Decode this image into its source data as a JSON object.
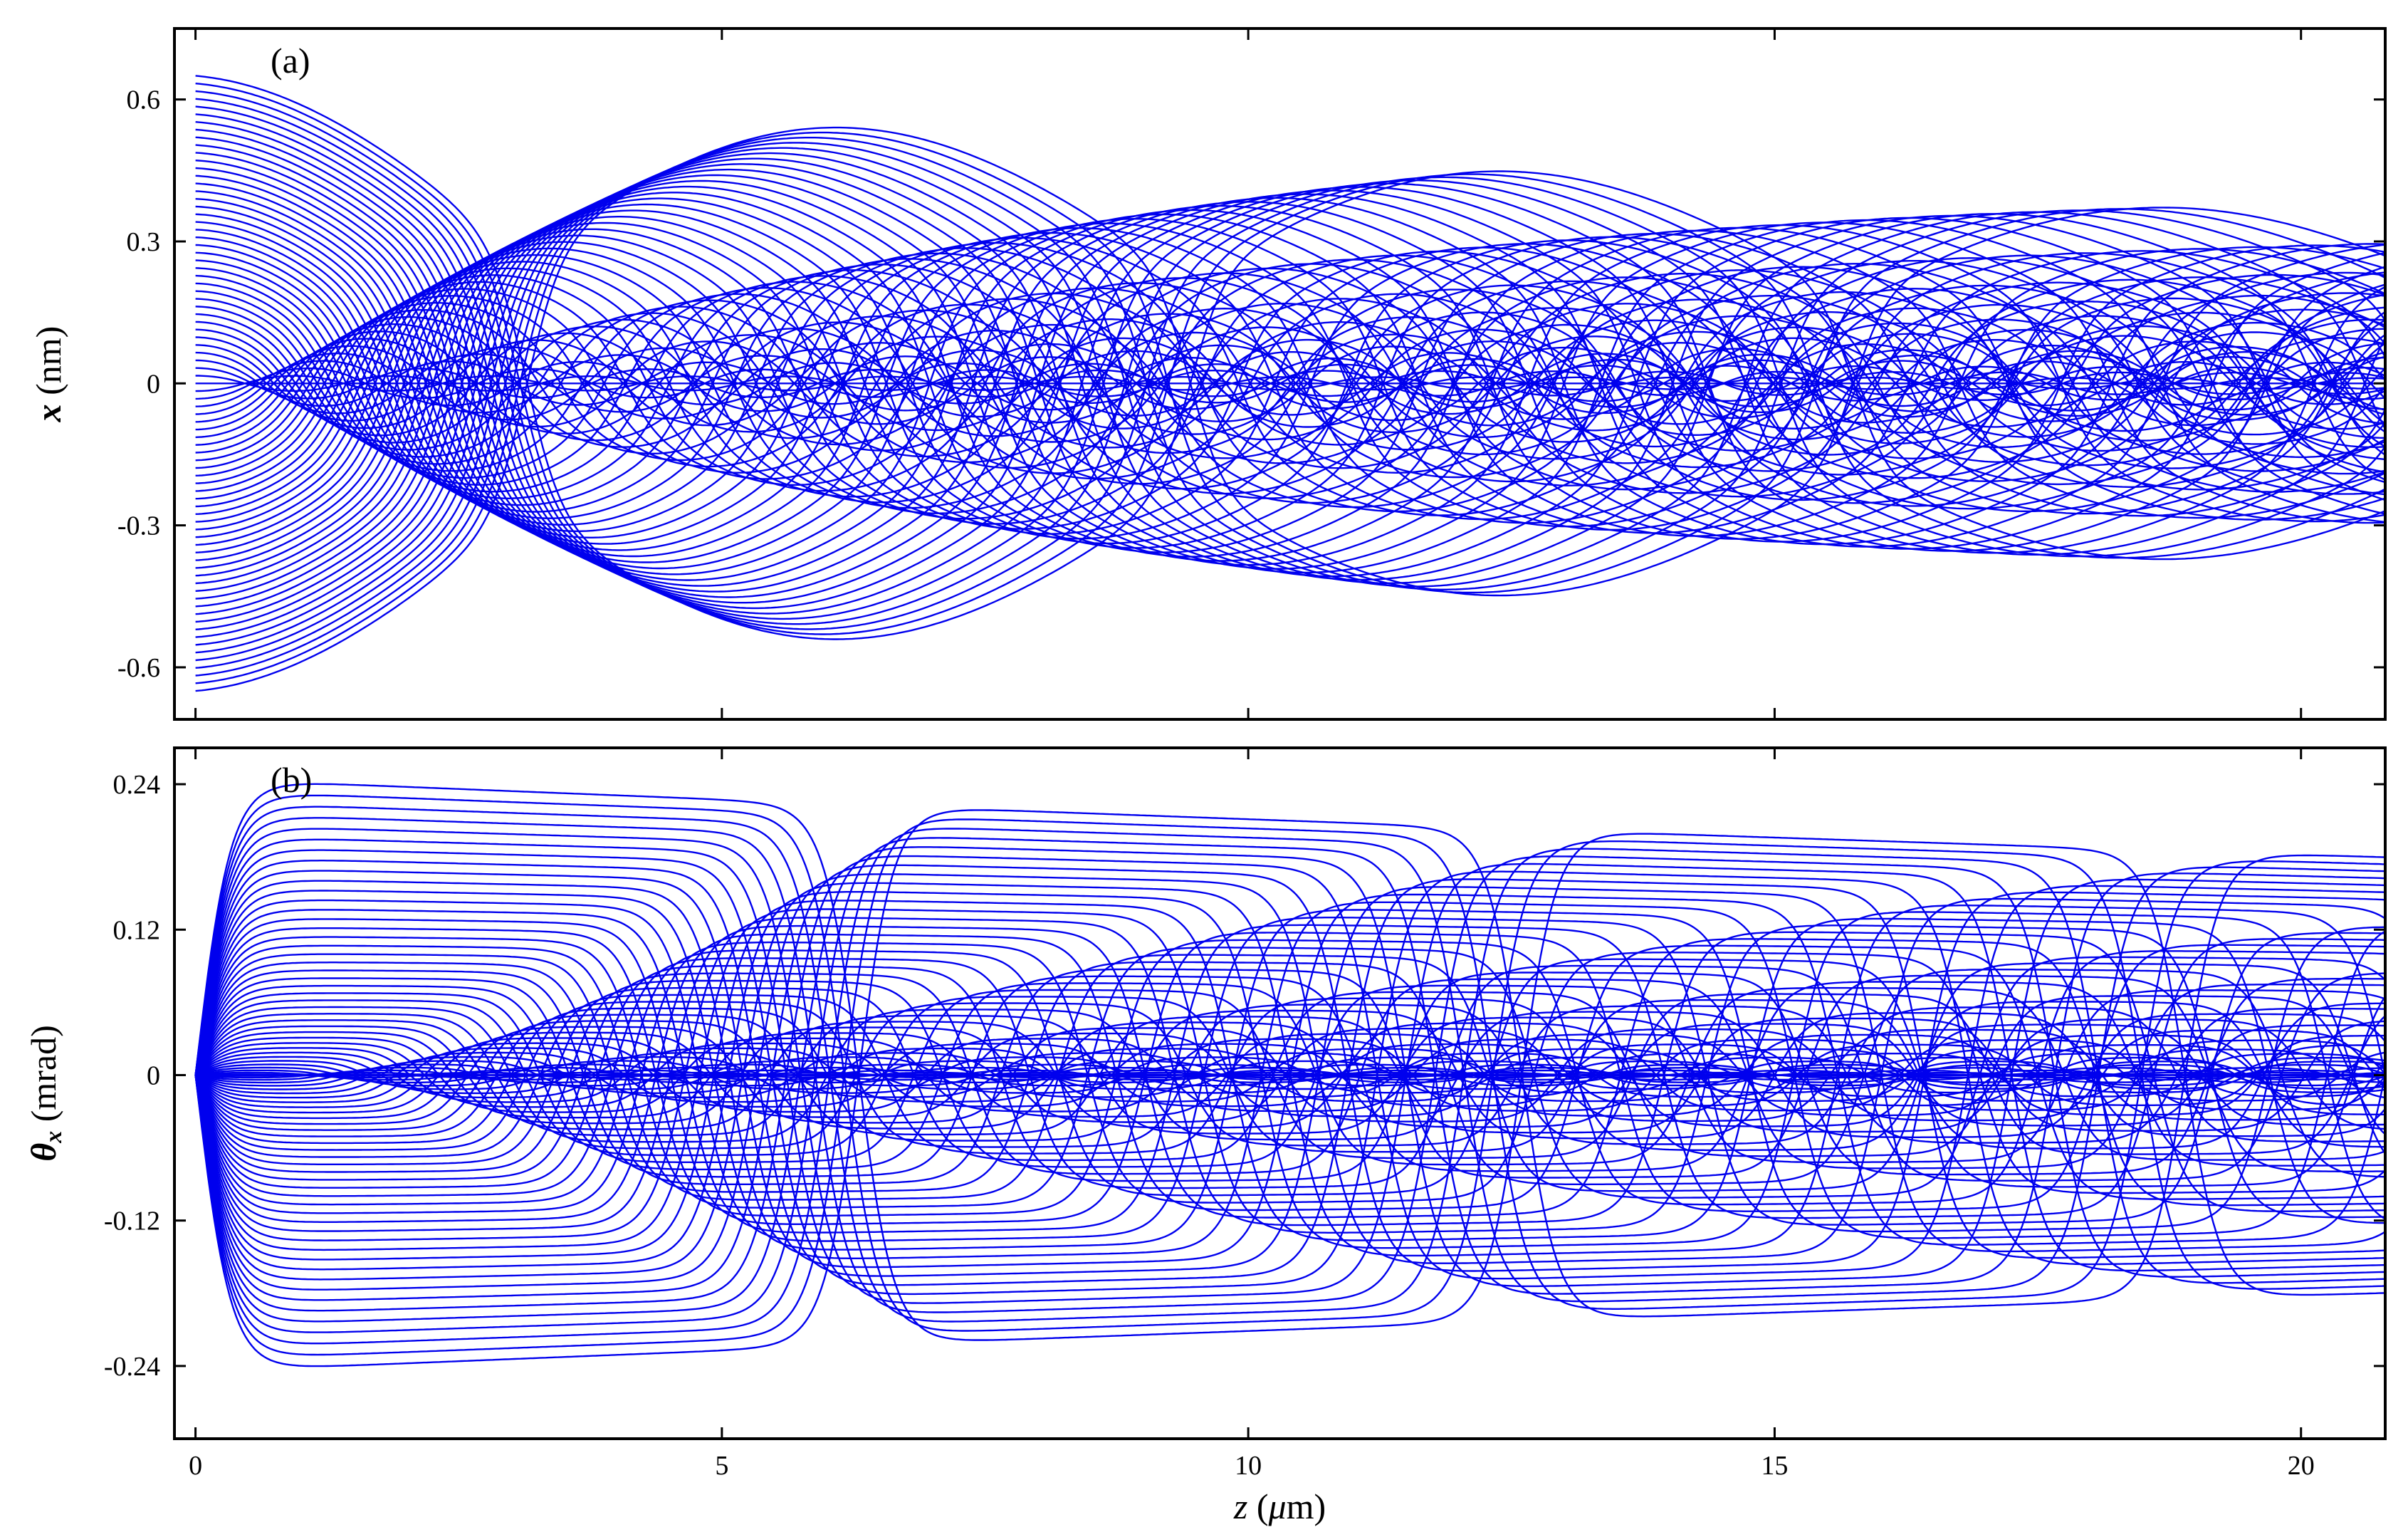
{
  "chart_data": [
    {
      "type": "line",
      "panel_label": "(a)",
      "title": "",
      "xlabel": "",
      "ylabel_symbol": "x",
      "ylabel_unit": " (nm)",
      "xlim": [
        -0.2,
        20.8
      ],
      "ylim": [
        -0.71,
        0.75
      ],
      "xticks": [
        0,
        5,
        10,
        15,
        20
      ],
      "xtick_labels": [
        "",
        "",
        "",
        "",
        ""
      ],
      "yticks": [
        -0.6,
        -0.3,
        0,
        0.3,
        0.6
      ],
      "ytick_labels": [
        "-0.6",
        "-0.3",
        "0",
        "0.3",
        "0.6"
      ],
      "grid": false,
      "legend": "none",
      "color": "#0000ee",
      "series_description": "Family of oscillating trajectories x(z) for initial offsets x0 evenly spaced in [-0.65, 0.65] nm; amplitude decays slowly and oscillation period grows with |x0|",
      "trajectory_count": 81,
      "x0_range": [
        -0.65,
        0.65
      ],
      "max_period_um": 12.6,
      "amplitude_at_z_20_8": 0.35
    },
    {
      "type": "line",
      "panel_label": "(b)",
      "title": "",
      "xlabel_symbol": "z",
      "xlabel_unit_open": " (",
      "xlabel_unit_mu": "μ",
      "xlabel_unit_rest": "m)",
      "ylabel_symbol": "θ",
      "ylabel_subscript": "x",
      "ylabel_unit": " (mrad)",
      "xlim": [
        -0.2,
        20.8
      ],
      "ylim": [
        -0.3,
        0.27
      ],
      "xticks": [
        0,
        5,
        10,
        15,
        20
      ],
      "xtick_labels": [
        "0",
        "5",
        "10",
        "15",
        "20"
      ],
      "yticks": [
        -0.24,
        -0.12,
        0,
        0.12,
        0.24
      ],
      "ytick_labels": [
        "-0.24",
        "-0.12",
        "0",
        "0.12",
        "0.24"
      ],
      "grid": false,
      "legend": "none",
      "color": "#0000ee",
      "series_description": "Angle θx(z) of the same trajectories; starts at 0, plateaus near ±0.24 mrad for the largest offsets",
      "trajectory_count": 81,
      "max_angle_mrad": 0.245
    }
  ]
}
